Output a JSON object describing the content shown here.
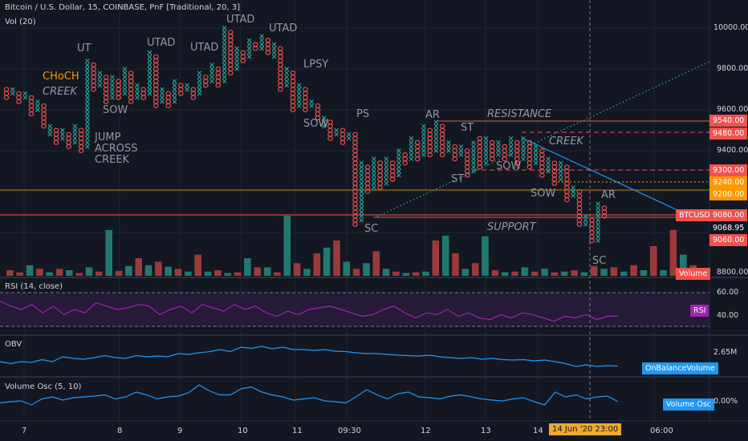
{
  "header": {
    "title": "Bitcoin / U.S. Dollar, 15, COINBASE, PnF [Traditional, 20, 3]",
    "vol": "Vol (20)"
  },
  "panes": {
    "rsi": {
      "title": "RSI (14, close)",
      "tag": "RSI",
      "levels": [
        "60.00",
        "40.00"
      ]
    },
    "obv": {
      "title": "OBV",
      "tag": "OnBalanceVolume",
      "level": "2.65M"
    },
    "vosc": {
      "title": "Volume Osc (5, 10)",
      "tag": "Volume Osc",
      "level": "0.00%"
    }
  },
  "price_axis": [
    "10000.00",
    "9800.00",
    "9600.00",
    "9400.00",
    "9200.00",
    "8800.00"
  ],
  "price_tags": {
    "t9540": "9540.00",
    "t9480": "9480.00",
    "t9300": "9300.00",
    "t9240": "9240.00",
    "t9200": "9200.00",
    "btc_name": "BTCUSD",
    "btc_price": "9080.00",
    "t9068": "9068.95",
    "t9060": "9060.00",
    "volume": "Volume"
  },
  "annotations": {
    "choch": "CHoCH",
    "creek1": "CREEK",
    "ut": "UT",
    "sow1": "SOW",
    "jump1": "JUMP",
    "jump2": "ACROSS",
    "jump3": "CREEK",
    "utad1": "UTAD",
    "utad2": "UTAD",
    "utad3": "UTAD",
    "utad4": "UTAD",
    "lpsy": "LPSY",
    "sow2": "SOW",
    "ps": "PS",
    "sc1": "SC",
    "ar1": "AR",
    "st1": "ST",
    "st2": "ST",
    "resistance": "RESISTANCE",
    "creek2": "CREEK",
    "sow3": "SOW",
    "sow4": "SOW",
    "support": "SUPPORT",
    "ar2": "AR",
    "sc2": "SC"
  },
  "time_axis": [
    "7",
    "8",
    "9",
    "10",
    "11",
    "09:30",
    "12",
    "13",
    "14",
    "06:00"
  ],
  "crosshair_time": "14 Jun '20",
  "crosshair_clock": "23:00",
  "colors": {
    "x": "#26a69a",
    "o": "#ef5350",
    "up_vol": "#22786f",
    "down_vol": "#9b3a3a",
    "rsi": "#9c27b0",
    "line": "#2196f3",
    "choch": "#ff9800"
  },
  "pnf_columns": [
    {
      "t": "o",
      "hi": 9700,
      "lo": 9660
    },
    {
      "t": "x",
      "hi": 9700,
      "lo": 9680
    },
    {
      "t": "o",
      "hi": 9680,
      "lo": 9640
    },
    {
      "t": "x",
      "hi": 9680,
      "lo": 9660
    },
    {
      "t": "o",
      "hi": 9660,
      "lo": 9580
    },
    {
      "t": "x",
      "hi": 9640,
      "lo": 9600
    },
    {
      "t": "o",
      "hi": 9620,
      "lo": 9520
    },
    {
      "t": "x",
      "hi": 9520,
      "lo": 9480
    },
    {
      "t": "o",
      "hi": 9500,
      "lo": 9440
    },
    {
      "t": "x",
      "hi": 9500,
      "lo": 9460
    },
    {
      "t": "o",
      "hi": 9480,
      "lo": 9420
    },
    {
      "t": "x",
      "hi": 9520,
      "lo": 9440
    },
    {
      "t": "o",
      "hi": 9500,
      "lo": 9400
    },
    {
      "t": "x",
      "hi": 9840,
      "lo": 9420
    },
    {
      "t": "o",
      "hi": 9820,
      "lo": 9700
    },
    {
      "t": "x",
      "hi": 9780,
      "lo": 9720
    },
    {
      "t": "o",
      "hi": 9760,
      "lo": 9640
    },
    {
      "t": "x",
      "hi": 9760,
      "lo": 9660
    },
    {
      "t": "o",
      "hi": 9740,
      "lo": 9660
    },
    {
      "t": "x",
      "hi": 9800,
      "lo": 9680
    },
    {
      "t": "o",
      "hi": 9780,
      "lo": 9640
    },
    {
      "t": "x",
      "hi": 9720,
      "lo": 9660
    },
    {
      "t": "o",
      "hi": 9700,
      "lo": 9660
    },
    {
      "t": "x",
      "hi": 9880,
      "lo": 9680
    },
    {
      "t": "o",
      "hi": 9860,
      "lo": 9620
    },
    {
      "t": "x",
      "hi": 9700,
      "lo": 9640
    },
    {
      "t": "o",
      "hi": 9680,
      "lo": 9620
    },
    {
      "t": "x",
      "hi": 9740,
      "lo": 9640
    },
    {
      "t": "o",
      "hi": 9720,
      "lo": 9680
    },
    {
      "t": "x",
      "hi": 9720,
      "lo": 9700
    },
    {
      "t": "o",
      "hi": 9700,
      "lo": 9660
    },
    {
      "t": "x",
      "hi": 9780,
      "lo": 9680
    },
    {
      "t": "o",
      "hi": 9760,
      "lo": 9720
    },
    {
      "t": "x",
      "hi": 9820,
      "lo": 9740
    },
    {
      "t": "o",
      "hi": 9800,
      "lo": 9720
    },
    {
      "t": "x",
      "hi": 10000,
      "lo": 9740
    },
    {
      "t": "o",
      "hi": 9980,
      "lo": 9780
    },
    {
      "t": "x",
      "hi": 9900,
      "lo": 9800
    },
    {
      "t": "o",
      "hi": 9880,
      "lo": 9840
    },
    {
      "t": "x",
      "hi": 9940,
      "lo": 9860
    },
    {
      "t": "o",
      "hi": 9920,
      "lo": 9900
    },
    {
      "t": "x",
      "hi": 9960,
      "lo": 9900
    },
    {
      "t": "o",
      "hi": 9940,
      "lo": 9880
    },
    {
      "t": "x",
      "hi": 9920,
      "lo": 9860
    },
    {
      "t": "o",
      "hi": 9900,
      "lo": 9700
    },
    {
      "t": "x",
      "hi": 9800,
      "lo": 9720
    },
    {
      "t": "o",
      "hi": 9780,
      "lo": 9600
    },
    {
      "t": "x",
      "hi": 9720,
      "lo": 9620
    },
    {
      "t": "o",
      "hi": 9700,
      "lo": 9600
    },
    {
      "t": "x",
      "hi": 9640,
      "lo": 9620
    },
    {
      "t": "o",
      "hi": 9620,
      "lo": 9560
    },
    {
      "t": "x",
      "hi": 9560,
      "lo": 9520
    },
    {
      "t": "o",
      "hi": 9540,
      "lo": 9460
    },
    {
      "t": "x",
      "hi": 9500,
      "lo": 9480
    },
    {
      "t": "o",
      "hi": 9500,
      "lo": 9440
    },
    {
      "t": "x",
      "hi": 9480,
      "lo": 9460
    },
    {
      "t": "o",
      "hi": 9480,
      "lo": 9040
    },
    {
      "t": "x",
      "hi": 9340,
      "lo": 9060
    },
    {
      "t": "o",
      "hi": 9320,
      "lo": 9200
    },
    {
      "t": "x",
      "hi": 9360,
      "lo": 9220
    },
    {
      "t": "o",
      "hi": 9340,
      "lo": 9220
    },
    {
      "t": "x",
      "hi": 9360,
      "lo": 9240
    },
    {
      "t": "o",
      "hi": 9340,
      "lo": 9260
    },
    {
      "t": "x",
      "hi": 9400,
      "lo": 9280
    },
    {
      "t": "o",
      "hi": 9380,
      "lo": 9340
    },
    {
      "t": "x",
      "hi": 9460,
      "lo": 9360
    },
    {
      "t": "o",
      "hi": 9440,
      "lo": 9360
    },
    {
      "t": "x",
      "hi": 9520,
      "lo": 9380
    },
    {
      "t": "o",
      "hi": 9500,
      "lo": 9380
    },
    {
      "t": "x",
      "hi": 9540,
      "lo": 9400
    },
    {
      "t": "o",
      "hi": 9520,
      "lo": 9380
    },
    {
      "t": "x",
      "hi": 9440,
      "lo": 9400
    },
    {
      "t": "o",
      "hi": 9420,
      "lo": 9360
    },
    {
      "t": "x",
      "hi": 9420,
      "lo": 9380
    },
    {
      "t": "o",
      "hi": 9400,
      "lo": 9280
    },
    {
      "t": "x",
      "hi": 9440,
      "lo": 9300
    },
    {
      "t": "o",
      "hi": 9460,
      "lo": 9320
    },
    {
      "t": "x",
      "hi": 9460,
      "lo": 9340
    },
    {
      "t": "o",
      "hi": 9440,
      "lo": 9360
    },
    {
      "t": "x",
      "hi": 9440,
      "lo": 9380
    },
    {
      "t": "o",
      "hi": 9420,
      "lo": 9360
    },
    {
      "t": "x",
      "hi": 9460,
      "lo": 9380
    },
    {
      "t": "o",
      "hi": 9440,
      "lo": 9340
    },
    {
      "t": "x",
      "hi": 9460,
      "lo": 9360
    },
    {
      "t": "o",
      "hi": 9440,
      "lo": 9320
    },
    {
      "t": "x",
      "hi": 9420,
      "lo": 9340
    },
    {
      "t": "o",
      "hi": 9400,
      "lo": 9280
    },
    {
      "t": "x",
      "hi": 9360,
      "lo": 9300
    },
    {
      "t": "o",
      "hi": 9340,
      "lo": 9240
    },
    {
      "t": "x",
      "hi": 9340,
      "lo": 9260
    },
    {
      "t": "o",
      "hi": 9320,
      "lo": 9160
    },
    {
      "t": "x",
      "hi": 9220,
      "lo": 9180
    },
    {
      "t": "o",
      "hi": 9200,
      "lo": 9040
    },
    {
      "t": "x",
      "hi": 9080,
      "lo": 9040
    },
    {
      "t": "o",
      "hi": 9060,
      "lo": 8960
    },
    {
      "t": "x",
      "hi": 9140,
      "lo": 8960
    },
    {
      "t": "o",
      "hi": 9120,
      "lo": 9080
    }
  ],
  "volume": [
    {
      "d": "d",
      "v": 0.08
    },
    {
      "d": "d",
      "v": 0.05
    },
    {
      "d": "u",
      "v": 0.15
    },
    {
      "d": "d",
      "v": 0.1
    },
    {
      "d": "u",
      "v": 0.05
    },
    {
      "d": "d",
      "v": 0.1
    },
    {
      "d": "u",
      "v": 0.08
    },
    {
      "d": "d",
      "v": 0.04
    },
    {
      "d": "u",
      "v": 0.12
    },
    {
      "d": "d",
      "v": 0.06
    },
    {
      "d": "u",
      "v": 0.65
    },
    {
      "d": "d",
      "v": 0.07
    },
    {
      "d": "u",
      "v": 0.14
    },
    {
      "d": "d",
      "v": 0.25
    },
    {
      "d": "u",
      "v": 0.15
    },
    {
      "d": "d",
      "v": 0.2
    },
    {
      "d": "u",
      "v": 0.13
    },
    {
      "d": "d",
      "v": 0.1
    },
    {
      "d": "u",
      "v": 0.06
    },
    {
      "d": "d",
      "v": 0.3
    },
    {
      "d": "u",
      "v": 0.06
    },
    {
      "d": "d",
      "v": 0.08
    },
    {
      "d": "u",
      "v": 0.04
    },
    {
      "d": "d",
      "v": 0.05
    },
    {
      "d": "u",
      "v": 0.25
    },
    {
      "d": "d",
      "v": 0.12
    },
    {
      "d": "u",
      "v": 0.12
    },
    {
      "d": "d",
      "v": 0.05
    },
    {
      "d": "u",
      "v": 0.85
    },
    {
      "d": "d",
      "v": 0.18
    },
    {
      "d": "u",
      "v": 0.1
    },
    {
      "d": "d",
      "v": 0.32
    },
    {
      "d": "u",
      "v": 0.4
    },
    {
      "d": "d",
      "v": 0.5
    },
    {
      "d": "u",
      "v": 0.2
    },
    {
      "d": "d",
      "v": 0.1
    },
    {
      "d": "u",
      "v": 0.18
    },
    {
      "d": "d",
      "v": 0.35
    },
    {
      "d": "u",
      "v": 0.1
    },
    {
      "d": "d",
      "v": 0.06
    },
    {
      "d": "u",
      "v": 0.04
    },
    {
      "d": "d",
      "v": 0.05
    },
    {
      "d": "u",
      "v": 0.06
    },
    {
      "d": "d",
      "v": 0.5
    },
    {
      "d": "u",
      "v": 0.57
    },
    {
      "d": "d",
      "v": 0.32
    },
    {
      "d": "u",
      "v": 0.1
    },
    {
      "d": "d",
      "v": 0.18
    },
    {
      "d": "u",
      "v": 0.56
    },
    {
      "d": "d",
      "v": 0.08
    },
    {
      "d": "u",
      "v": 0.05
    },
    {
      "d": "d",
      "v": 0.06
    },
    {
      "d": "u",
      "v": 0.12
    },
    {
      "d": "d",
      "v": 0.06
    },
    {
      "d": "u",
      "v": 0.1
    },
    {
      "d": "d",
      "v": 0.05
    },
    {
      "d": "u",
      "v": 0.06
    },
    {
      "d": "d",
      "v": 0.08
    },
    {
      "d": "u",
      "v": 0.05
    },
    {
      "d": "d",
      "v": 0.14
    },
    {
      "d": "u",
      "v": 0.1
    },
    {
      "d": "d",
      "v": 0.12
    },
    {
      "d": "u",
      "v": 0.06
    },
    {
      "d": "d",
      "v": 0.15
    },
    {
      "d": "u",
      "v": 0.08
    },
    {
      "d": "d",
      "v": 0.42
    },
    {
      "d": "u",
      "v": 0.08
    },
    {
      "d": "d",
      "v": 0.65
    },
    {
      "d": "u",
      "v": 0.3
    },
    {
      "d": "d",
      "v": 0.15
    },
    {
      "d": "u",
      "v": 0.02
    }
  ],
  "rsi": [
    55,
    52,
    50,
    53,
    48,
    52,
    47,
    50,
    48,
    54,
    52,
    50,
    51,
    53,
    52,
    47,
    50,
    52,
    48,
    53,
    51,
    49,
    53,
    50,
    52,
    48,
    46,
    49,
    47,
    50,
    51,
    52,
    50,
    48,
    46,
    47,
    50,
    52,
    48,
    45,
    48,
    47,
    50,
    46,
    48,
    45,
    44,
    47,
    45,
    48,
    47,
    45,
    43,
    46,
    45,
    47,
    44,
    46,
    46
  ],
  "obv": [
    0.3,
    0.25,
    0.3,
    0.28,
    0.35,
    0.3,
    0.42,
    0.38,
    0.36,
    0.4,
    0.45,
    0.4,
    0.38,
    0.45,
    0.42,
    0.44,
    0.42,
    0.5,
    0.48,
    0.52,
    0.55,
    0.6,
    0.55,
    0.66,
    0.63,
    0.68,
    0.62,
    0.66,
    0.6,
    0.6,
    0.58,
    0.6,
    0.56,
    0.55,
    0.52,
    0.5,
    0.5,
    0.48,
    0.46,
    0.45,
    0.44,
    0.46,
    0.42,
    0.4,
    0.38,
    0.4,
    0.36,
    0.38,
    0.35,
    0.34,
    0.35,
    0.32,
    0.34,
    0.3,
    0.25,
    0.18,
    0.22,
    0.18,
    0.2,
    0.19
  ],
  "vosc": [
    0.35,
    0.38,
    0.4,
    0.3,
    0.45,
    0.5,
    0.42,
    0.48,
    0.5,
    0.52,
    0.55,
    0.45,
    0.5,
    0.62,
    0.55,
    0.45,
    0.5,
    0.52,
    0.6,
    0.8,
    0.65,
    0.55,
    0.55,
    0.7,
    0.75,
    0.62,
    0.55,
    0.5,
    0.42,
    0.45,
    0.48,
    0.4,
    0.38,
    0.35,
    0.5,
    0.68,
    0.55,
    0.45,
    0.58,
    0.62,
    0.5,
    0.48,
    0.45,
    0.52,
    0.55,
    0.5,
    0.45,
    0.42,
    0.4,
    0.45,
    0.48,
    0.38,
    0.3,
    0.62,
    0.5,
    0.55,
    0.45,
    0.5,
    0.52,
    0.38
  ]
}
